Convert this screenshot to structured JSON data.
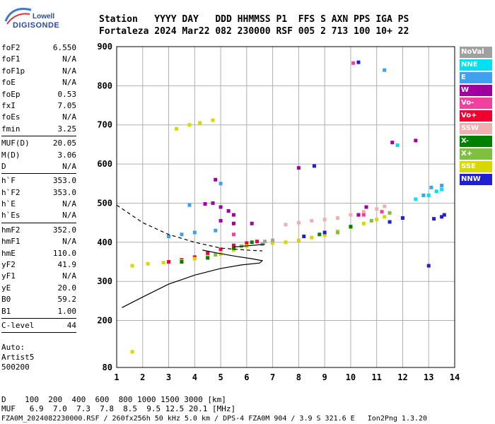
{
  "logo": {
    "line1": "Lowell",
    "line2": "DIGISONDE"
  },
  "header": {
    "labels": "Station   YYYY DAY   DDD HHMMSS P1  FFS S AXN PPS IGA PS",
    "values": "Fortaleza 2024 Mar22 082 230000 RSF 005 2 713 100 10+ 22"
  },
  "params": {
    "group1": [
      {
        "k": "foF2",
        "v": "6.550"
      },
      {
        "k": "foF1",
        "v": "N/A"
      },
      {
        "k": "foF1p",
        "v": "N/A"
      },
      {
        "k": "foE",
        "v": "N/A"
      },
      {
        "k": "foEp",
        "v": "0.53"
      },
      {
        "k": "fxI",
        "v": "7.05"
      },
      {
        "k": "foEs",
        "v": "N/A"
      },
      {
        "k": "fmin",
        "v": "3.25"
      }
    ],
    "group2": [
      {
        "k": "MUF(D)",
        "v": "20.05"
      },
      {
        "k": "M(D)",
        "v": "3.06"
      },
      {
        "k": "D",
        "v": "N/A"
      }
    ],
    "group3": [
      {
        "k": "h`F",
        "v": "353.0"
      },
      {
        "k": "h`F2",
        "v": "353.0"
      },
      {
        "k": "h`E",
        "v": "N/A"
      },
      {
        "k": "h`Es",
        "v": "N/A"
      }
    ],
    "group4": [
      {
        "k": "hmF2",
        "v": "352.0"
      },
      {
        "k": "hmF1",
        "v": "N/A"
      },
      {
        "k": "hmE",
        "v": "110.0"
      },
      {
        "k": "yF2",
        "v": "41.9"
      },
      {
        "k": "yF1",
        "v": "N/A"
      },
      {
        "k": "yE",
        "v": "20.0"
      },
      {
        "k": "B0",
        "v": "59.2"
      },
      {
        "k": "B1",
        "v": "1.00"
      }
    ],
    "group5": [
      {
        "k": "C-level",
        "v": "44"
      }
    ]
  },
  "auto": {
    "line1": "Auto:",
    "line2": "Artist5",
    "line3": "500200"
  },
  "legend": [
    {
      "label": "NoVal",
      "color": "#a0a0a0"
    },
    {
      "label": "NNE",
      "color": "#00e0f0"
    },
    {
      "label": "E",
      "color": "#40a0f0"
    },
    {
      "label": "W",
      "color": "#a000a0"
    },
    {
      "label": "Vo-",
      "color": "#f040a0"
    },
    {
      "label": "Vo+",
      "color": "#f00030"
    },
    {
      "label": "SSW",
      "color": "#f0b0b0"
    },
    {
      "label": "X-",
      "color": "#008000"
    },
    {
      "label": "X+",
      "color": "#80c040"
    },
    {
      "label": "SSE",
      "color": "#d8d800"
    },
    {
      "label": "NNW",
      "color": "#2020d0"
    }
  ],
  "footer": {
    "line1": "D    100  200  400  600  800 1000 1500 3000 [km]",
    "line2": "MUF   6.9  7.0  7.3  7.8  8.5  9.5 12.5 20.1 [MHz]",
    "line3": "FZA0M_2024082230000.RSF / 260fx256h 50 kHz 5.0 km / DPS-4 FZA0M 904 / 3.9 S 321.6 E   Ion2Png 1.3.20"
  },
  "chart_data": {
    "type": "scatter",
    "x_ticks": [
      "1",
      "2",
      "3",
      "4",
      "5",
      "6",
      "7",
      "8",
      "9",
      "10",
      "11",
      "12",
      "13",
      "14"
    ],
    "y_ticks": [
      "80",
      "200",
      "300",
      "400",
      "500",
      "600",
      "700",
      "800",
      "900"
    ],
    "xlim": [
      1,
      14
    ],
    "ylim": [
      80,
      900
    ],
    "grid": true,
    "series": [
      {
        "name": "Vo+",
        "color": "#f00030",
        "points": [
          [
            3.0,
            350
          ],
          [
            3.5,
            355
          ],
          [
            4.0,
            362
          ],
          [
            4.5,
            372
          ],
          [
            5.0,
            382
          ],
          [
            5.5,
            392
          ],
          [
            6.0,
            398
          ],
          [
            6.4,
            402
          ]
        ]
      },
      {
        "name": "SSE",
        "color": "#d8d800",
        "points": [
          [
            2.2,
            345
          ],
          [
            2.8,
            348
          ],
          [
            3.5,
            352
          ],
          [
            4.0,
            358
          ],
          [
            4.5,
            362
          ],
          [
            5.0,
            370
          ],
          [
            5.5,
            380
          ],
          [
            6.0,
            390
          ],
          [
            7.0,
            398
          ],
          [
            7.5,
            400
          ],
          [
            8.0,
            405
          ],
          [
            8.5,
            412
          ],
          [
            9.0,
            418
          ],
          [
            9.5,
            428
          ],
          [
            10.0,
            438
          ],
          [
            10.5,
            448
          ],
          [
            11.0,
            458
          ],
          [
            11.3,
            465
          ],
          [
            1.6,
            340
          ],
          [
            1.6,
            120
          ],
          [
            3.3,
            690
          ],
          [
            3.8,
            700
          ],
          [
            4.2,
            705
          ],
          [
            4.7,
            712
          ]
        ]
      },
      {
        "name": "X-",
        "color": "#008000",
        "points": [
          [
            3.5,
            350
          ],
          [
            4.5,
            360
          ],
          [
            5.5,
            385
          ],
          [
            6.2,
            400
          ],
          [
            8.8,
            420
          ],
          [
            10.0,
            440
          ]
        ]
      },
      {
        "name": "X+",
        "color": "#80c040",
        "points": [
          [
            4.8,
            368
          ],
          [
            5.8,
            390
          ],
          [
            9.5,
            425
          ],
          [
            10.8,
            455
          ],
          [
            11.5,
            475
          ]
        ]
      },
      {
        "name": "W",
        "color": "#a000a0",
        "points": [
          [
            4.4,
            498
          ],
          [
            4.7,
            500
          ],
          [
            5.0,
            490
          ],
          [
            5.3,
            480
          ],
          [
            5.5,
            470
          ],
          [
            5.0,
            455
          ],
          [
            5.5,
            448
          ],
          [
            6.2,
            448
          ],
          [
            4.8,
            560
          ],
          [
            10.3,
            470
          ],
          [
            10.6,
            490
          ],
          [
            8.0,
            590
          ],
          [
            12.5,
            660
          ],
          [
            11.6,
            655
          ]
        ]
      },
      {
        "name": "SSW",
        "color": "#f0b0b0",
        "points": [
          [
            7.5,
            445
          ],
          [
            8.0,
            450
          ],
          [
            8.5,
            455
          ],
          [
            9.0,
            458
          ],
          [
            9.5,
            462
          ],
          [
            10.0,
            470
          ],
          [
            10.5,
            478
          ],
          [
            11.0,
            485
          ],
          [
            11.3,
            492
          ]
        ]
      },
      {
        "name": "E",
        "color": "#40a0f0",
        "points": [
          [
            3.0,
            415
          ],
          [
            3.5,
            420
          ],
          [
            4.0,
            425
          ],
          [
            4.8,
            430
          ],
          [
            3.8,
            495
          ],
          [
            5.0,
            550
          ],
          [
            12.8,
            520
          ],
          [
            13.5,
            545
          ],
          [
            13.1,
            540
          ],
          [
            11.3,
            840
          ]
        ]
      },
      {
        "name": "NNE",
        "color": "#00e0f0",
        "points": [
          [
            12.5,
            510
          ],
          [
            13.0,
            520
          ],
          [
            13.3,
            530
          ],
          [
            13.5,
            535
          ],
          [
            11.8,
            648
          ]
        ]
      },
      {
        "name": "NNW",
        "color": "#2020d0",
        "points": [
          [
            13.2,
            460
          ],
          [
            13.5,
            465
          ],
          [
            13.6,
            470
          ],
          [
            12.0,
            462
          ],
          [
            8.2,
            415
          ],
          [
            9.0,
            425
          ],
          [
            11.5,
            452
          ],
          [
            8.6,
            595
          ],
          [
            10.3,
            860
          ],
          [
            13.0,
            340
          ]
        ]
      },
      {
        "name": "Vo-",
        "color": "#f040a0",
        "points": [
          [
            5.5,
            420
          ],
          [
            10.5,
            470
          ],
          [
            10.1,
            858
          ],
          [
            11.2,
            478
          ]
        ]
      },
      {
        "name": "NoVal",
        "color": "#a0a0a0",
        "points": [
          [
            6.7,
            402
          ],
          [
            7.0,
            405
          ],
          [
            6.6,
            395
          ]
        ]
      }
    ],
    "curves": [
      {
        "name": "profile-solid",
        "style": "solid",
        "points": [
          [
            1.2,
            233
          ],
          [
            2.0,
            260
          ],
          [
            3.0,
            293
          ],
          [
            4.0,
            316
          ],
          [
            5.0,
            333
          ],
          [
            5.8,
            342
          ],
          [
            6.5,
            347
          ],
          [
            6.6,
            353
          ],
          [
            6.2,
            358
          ],
          [
            5.6,
            364
          ],
          [
            4.9,
            372
          ],
          [
            4.3,
            380
          ]
        ]
      },
      {
        "name": "profile-dashed",
        "style": "dashed",
        "points": [
          [
            1.0,
            495
          ],
          [
            2.0,
            450
          ],
          [
            3.0,
            420
          ],
          [
            4.0,
            400
          ],
          [
            5.0,
            385
          ],
          [
            6.0,
            380
          ],
          [
            6.6,
            378
          ]
        ]
      },
      {
        "name": "trace-inner",
        "style": "solid",
        "points": [
          [
            5.5,
            388
          ],
          [
            6.2,
            392
          ],
          [
            6.7,
            395
          ]
        ]
      }
    ]
  }
}
